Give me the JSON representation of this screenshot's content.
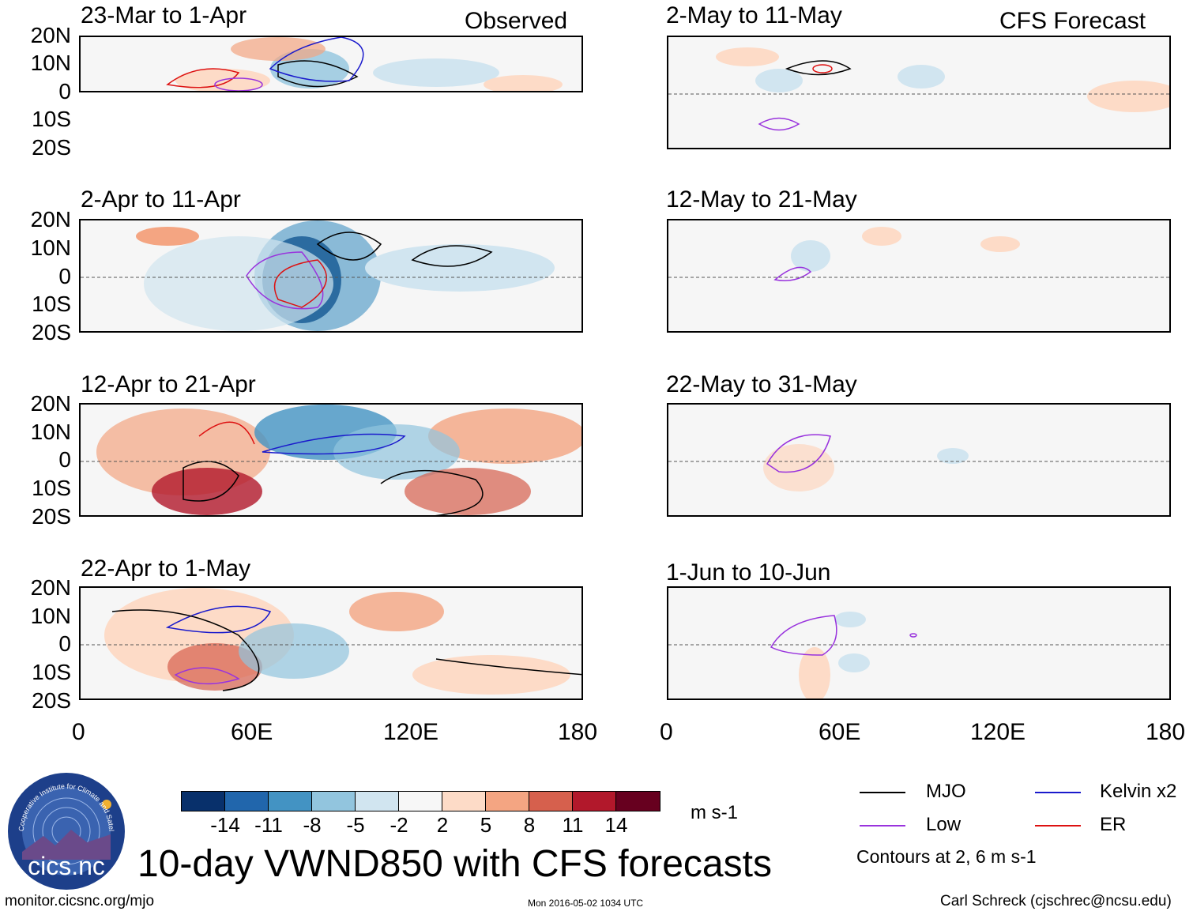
{
  "figure_title": "10-day VWND850 with CFS forecasts",
  "observed_label": "Observed",
  "forecast_label": "CFS Forecast",
  "lat_labels": [
    "20N",
    "10N",
    "0",
    "10S",
    "20S"
  ],
  "lon_labels": [
    "0",
    "60E",
    "120E",
    "180"
  ],
  "panels": {
    "p1": "23-Mar to 1-Apr",
    "p2": "2-Apr to 11-Apr",
    "p3": "12-Apr to 21-Apr",
    "p4": "22-Apr to 1-May",
    "p5": "2-May to 11-May",
    "p6": "12-May to 21-May",
    "p7": "22-May to 31-May",
    "p8": "1-Jun to 10-Jun"
  },
  "colorbar": {
    "labels": [
      "-14",
      "-11",
      "-8",
      "-5",
      "-2",
      "2",
      "5",
      "8",
      "11",
      "14"
    ],
    "units": "m s-1",
    "colors": [
      "#08306b",
      "#2166ac",
      "#4393c3",
      "#92c5de",
      "#d1e5f0",
      "#f7f7f7",
      "#fddbc7",
      "#f4a582",
      "#d6604d",
      "#b2182b",
      "#67001f"
    ]
  },
  "legend": {
    "mjo": "MJO",
    "kelvin": "Kelvin x2",
    "low": "Low",
    "er": "ER",
    "contours": "Contours at 2, 6 m s-1",
    "colors": {
      "mjo": "#000000",
      "kelvin": "#1a1acc",
      "low": "#9933dd",
      "er": "#dd1111"
    }
  },
  "logo_text": "cics.nc",
  "logo_ring_text": "Cooperative Institute for Climate and Satellites",
  "footer": {
    "url": "monitor.cicsnc.org/mjo",
    "timestamp": "Mon 2016-05-02 1034 UTC",
    "author": "Carl Schreck (cjschrec@ncsu.edu)"
  }
}
